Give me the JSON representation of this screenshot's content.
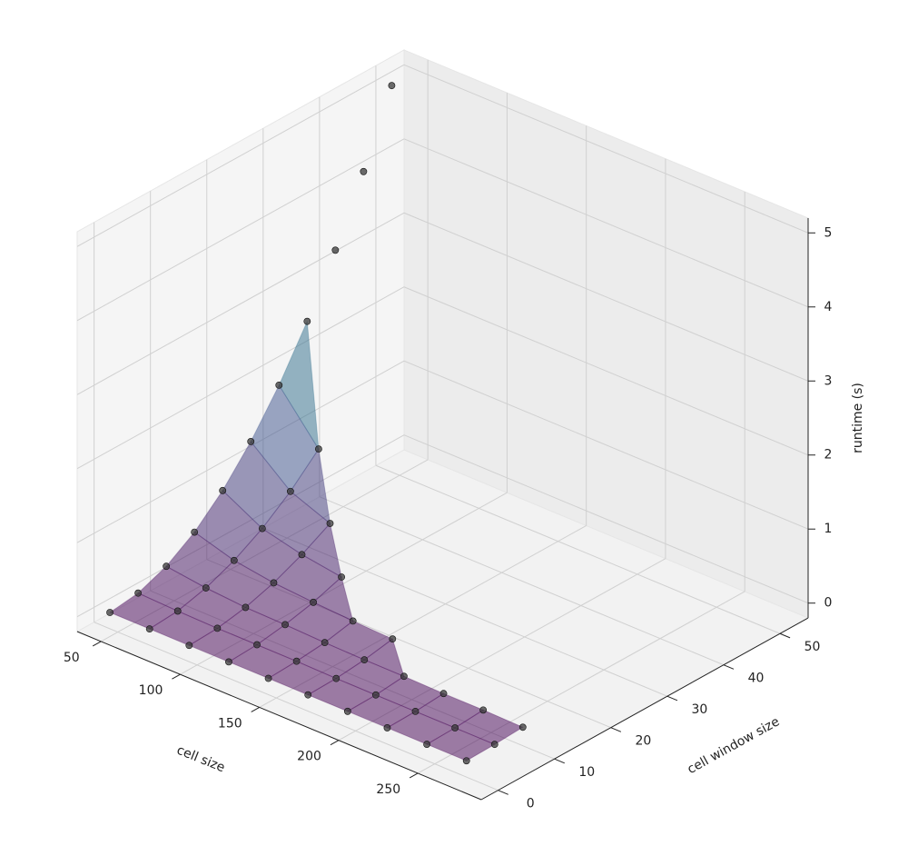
{
  "chart_data": {
    "type": "scatter3d",
    "xlabel": "cell size",
    "ylabel": "cell window size",
    "zlabel": "runtime (s)",
    "xlim": [
      35,
      290
    ],
    "ylim": [
      -3,
      55
    ],
    "zlim": [
      -0.2,
      5.2
    ],
    "xticks": [
      50,
      100,
      150,
      200,
      250
    ],
    "yticks": [
      0,
      10,
      20,
      30,
      40,
      50
    ],
    "zticks": [
      0,
      1,
      2,
      3,
      4,
      5
    ],
    "surface": true,
    "colormap": "viridis",
    "series": [
      {
        "color": "#3a3a3a",
        "x": [
          45,
          45,
          45,
          45,
          45,
          45,
          45,
          45,
          45,
          45,
          45,
          70,
          70,
          70,
          70,
          70,
          70,
          70,
          95,
          95,
          95,
          95,
          95,
          95,
          120,
          120,
          120,
          120,
          120,
          145,
          145,
          145,
          145,
          170,
          170,
          170,
          170,
          195,
          195,
          195,
          220,
          220,
          220,
          245,
          245,
          245,
          270,
          270,
          270
        ],
        "y": [
          0,
          5,
          10,
          15,
          20,
          25,
          30,
          35,
          40,
          45,
          50,
          0,
          5,
          10,
          15,
          20,
          25,
          30,
          0,
          5,
          10,
          15,
          20,
          25,
          0,
          5,
          10,
          15,
          20,
          0,
          5,
          10,
          15,
          0,
          5,
          10,
          15,
          0,
          5,
          10,
          0,
          5,
          10,
          0,
          5,
          10,
          0,
          5,
          10
        ],
        "z": [
          0.02,
          0.07,
          0.22,
          0.47,
          0.82,
          1.27,
          1.82,
          2.47,
          3.22,
          4.07,
          5.02,
          0.02,
          0.05,
          0.15,
          0.31,
          0.53,
          0.82,
          1.18,
          0.02,
          0.04,
          0.11,
          0.23,
          0.4,
          0.61,
          0.02,
          0.04,
          0.1,
          0.19,
          0.32,
          0.02,
          0.04,
          0.08,
          0.16,
          0.02,
          0.03,
          0.07,
          0.14,
          0.02,
          0.03,
          0.07,
          0.02,
          0.03,
          0.06,
          0.02,
          0.03,
          0.06,
          0.02,
          0.03,
          0.05
        ]
      }
    ]
  }
}
